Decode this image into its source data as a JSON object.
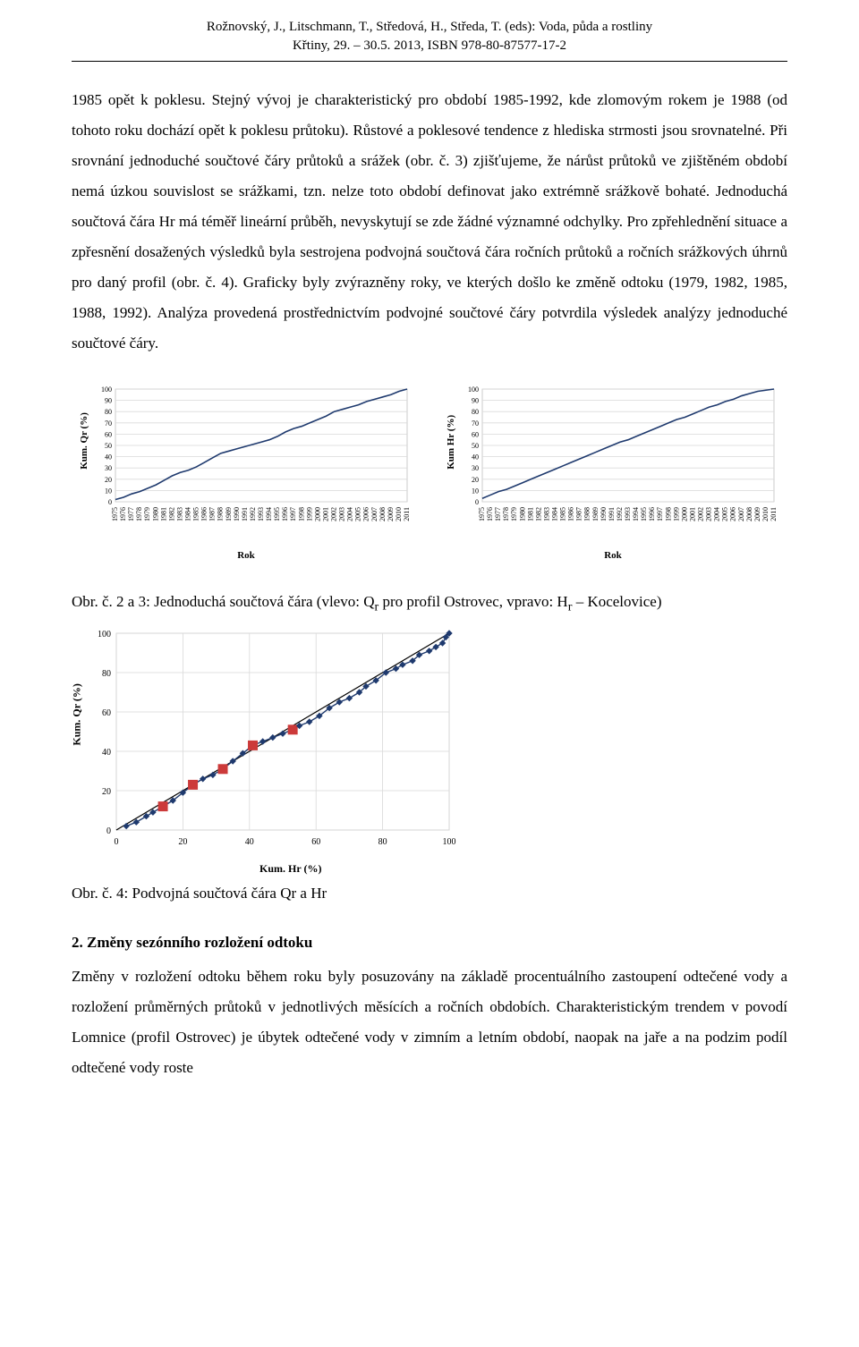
{
  "header": {
    "line1": "Rožnovský, J., Litschmann, T., Středová, H., Středa, T. (eds): Voda, půda a rostliny",
    "line2": "Křtiny, 29. – 30.5. 2013, ISBN 978-80-87577-17-2"
  },
  "body_text": "1985 opět k poklesu. Stejný vývoj je charakteristický pro období 1985-1992, kde zlomovým rokem je 1988 (od tohoto roku dochází opět k poklesu průtoku). Růstové a poklesové tendence z hlediska strmosti jsou srovnatelné.\nPři srovnání jednoduché součtové čáry průtoků a srážek (obr. č. 3) zjišťujeme, že nárůst průtoků ve zjištěném období nemá úzkou souvislost se srážkami, tzn. nelze toto období definovat jako extrémně srážkově bohaté. Jednoduchá součtová čára Hr má téměř lineární průběh, nevyskytují se zde žádné významné odchylky.\nPro zpřehlednění situace a zpřesnění dosažených výsledků byla sestrojena podvojná součtová čára ročních průtoků a ročních srážkových úhrnů pro daný profil (obr. č. 4). Graficky byly zvýrazněny roky, ve kterých došlo ke změně odtoku (1979, 1982, 1985, 1988, 1992). Analýza provedená prostřednictvím podvojné součtové čáry potvrdila výsledek analýzy jednoduché součtové čáry.",
  "caption23": "Obr. č. 2 a 3: Jednoduchá součtová čára (vlevo: Qr pro profil Ostrovec, vpravo: Hr – Kocelovice)",
  "caption4": "Obr. č. 4: Podvojná součtová čára Qr a Hr",
  "section_heading": "2. Změny sezónního rozložení odtoku",
  "section_body": "Změny v rozložení odtoku během roku byly posuzovány na základě procentuálního zastoupení odtečené vody a rozložení průměrných průtoků v jednotlivých měsících a ročních obdobích. Charakteristickým trendem v povodí Lomnice (profil Ostrovec) je úbytek odtečené vody v zimním a letním období, naopak na jaře a na podzim podíl odtečené vody roste",
  "chart_left": {
    "type": "line",
    "ylabel": "Kum. Qr (%)",
    "xlabel": "Rok",
    "ylim": [
      0,
      100
    ],
    "ytick_step": 10,
    "years": [
      1975,
      1976,
      1977,
      1978,
      1979,
      1980,
      1981,
      1982,
      1983,
      1984,
      1985,
      1986,
      1987,
      1988,
      1989,
      1990,
      1991,
      1992,
      1993,
      1994,
      1995,
      1996,
      1997,
      1998,
      1999,
      2000,
      2001,
      2002,
      2003,
      2004,
      2005,
      2006,
      2007,
      2008,
      2009,
      2010,
      2011
    ],
    "values": [
      2,
      4,
      7,
      9,
      12,
      15,
      19,
      23,
      26,
      28,
      31,
      35,
      39,
      43,
      45,
      47,
      49,
      51,
      53,
      55,
      58,
      62,
      65,
      67,
      70,
      73,
      76,
      80,
      82,
      84,
      86,
      89,
      91,
      93,
      95,
      98,
      100
    ],
    "line_color": "#1f3a6e",
    "grid_color": "#d9d9d9",
    "background_color": "#ffffff",
    "font_size": 8
  },
  "chart_right": {
    "type": "line",
    "ylabel": "Kum Hr (%)",
    "xlabel": "Rok",
    "ylim": [
      0,
      100
    ],
    "ytick_step": 10,
    "years": [
      1975,
      1976,
      1977,
      1978,
      1979,
      1980,
      1981,
      1982,
      1983,
      1984,
      1985,
      1986,
      1987,
      1988,
      1989,
      1990,
      1991,
      1992,
      1993,
      1994,
      1995,
      1996,
      1997,
      1998,
      1999,
      2000,
      2001,
      2002,
      2003,
      2004,
      2005,
      2006,
      2007,
      2008,
      2009,
      2010,
      2011
    ],
    "values": [
      3,
      6,
      9,
      11,
      14,
      17,
      20,
      23,
      26,
      29,
      32,
      35,
      38,
      41,
      44,
      47,
      50,
      53,
      55,
      58,
      61,
      64,
      67,
      70,
      73,
      75,
      78,
      81,
      84,
      86,
      89,
      91,
      94,
      96,
      98,
      99,
      100
    ],
    "line_color": "#1f3a6e",
    "grid_color": "#d9d9d9",
    "background_color": "#ffffff",
    "font_size": 8
  },
  "chart4": {
    "type": "scatter+line",
    "ylabel": "Kum. Qr (%)",
    "xlabel": "Kum. Hr (%)",
    "xlim": [
      0,
      100
    ],
    "ylim": [
      0,
      100
    ],
    "xtick_step": 20,
    "ytick_step": 20,
    "hr": [
      3,
      6,
      9,
      11,
      14,
      17,
      20,
      23,
      26,
      29,
      32,
      35,
      38,
      41,
      44,
      47,
      50,
      53,
      55,
      58,
      61,
      64,
      67,
      70,
      73,
      75,
      78,
      81,
      84,
      86,
      89,
      91,
      94,
      96,
      98,
      99,
      100
    ],
    "qr": [
      2,
      4,
      7,
      9,
      12,
      15,
      19,
      23,
      26,
      28,
      31,
      35,
      39,
      43,
      45,
      47,
      49,
      51,
      53,
      55,
      58,
      62,
      65,
      67,
      70,
      73,
      76,
      80,
      82,
      84,
      86,
      89,
      91,
      93,
      95,
      98,
      100
    ],
    "highlight_indices": [
      4,
      7,
      10,
      13,
      17
    ],
    "marker_color": "#1f3a6e",
    "highlight_color": "#cc3a3a",
    "fit_line_color": "#000000",
    "grid_color": "#d9d9d9",
    "background_color": "#ffffff",
    "font_size": 10
  }
}
